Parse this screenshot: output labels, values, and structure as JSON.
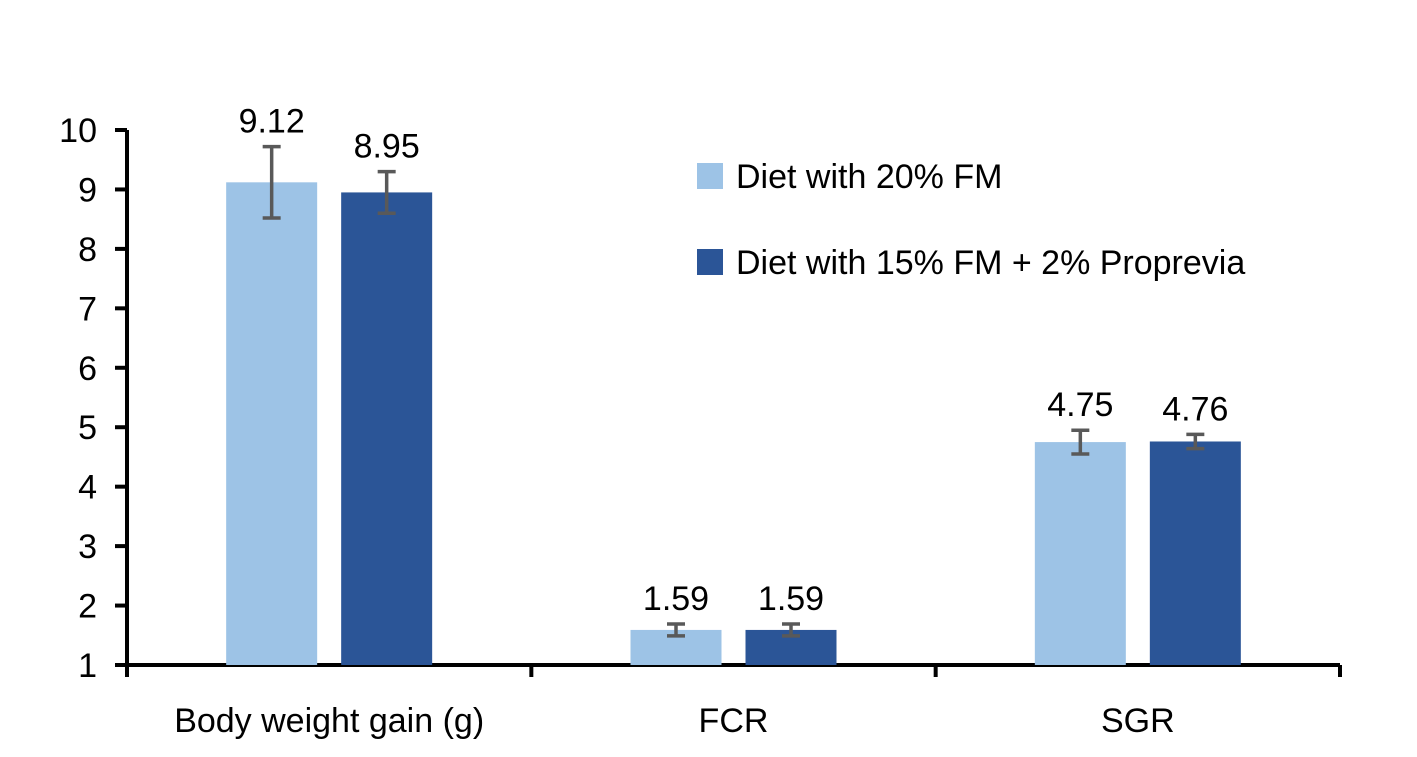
{
  "chart_data": {
    "type": "bar",
    "categories": [
      "Body weight gain (g)",
      "FCR",
      "SGR"
    ],
    "series": [
      {
        "name": "Diet with 20% FM",
        "color": "#9dc3e6",
        "values": [
          9.12,
          1.59,
          4.75
        ],
        "labels": [
          "9.12",
          "1.59",
          "4.75"
        ],
        "error": [
          0.6,
          0.1,
          0.2
        ]
      },
      {
        "name": "Diet with 15% FM + 2% Proprevia",
        "color": "#2b5597",
        "values": [
          8.95,
          1.59,
          4.76
        ],
        "labels": [
          "8.95",
          "1.59",
          "4.76"
        ],
        "error": [
          0.35,
          0.1,
          0.12
        ]
      }
    ],
    "ylim": [
      1,
      10
    ],
    "yticks": [
      1,
      2,
      3,
      4,
      5,
      6,
      7,
      8,
      9,
      10
    ],
    "ytick_labels": [
      "1",
      "2",
      "3",
      "4",
      "5",
      "6",
      "7",
      "8",
      "9",
      "10"
    ],
    "title": "",
    "xlabel": "",
    "ylabel": "",
    "grid": false,
    "legend_position": "top-right"
  }
}
